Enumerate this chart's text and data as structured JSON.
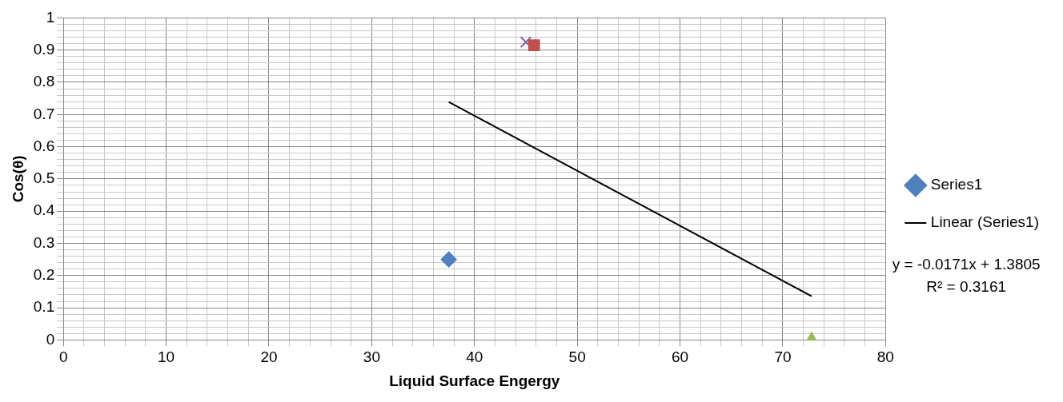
{
  "chart_data": {
    "type": "scatter",
    "xlabel": "Liquid Surface Engergy",
    "ylabel": "Cos(θ)",
    "xlim": [
      0,
      80
    ],
    "xticks": [
      0,
      10,
      20,
      30,
      40,
      50,
      60,
      70,
      80
    ],
    "ylim": [
      0,
      1
    ],
    "yticks": [
      0,
      0.1,
      0.2,
      0.3,
      0.4,
      0.5,
      0.6,
      0.7,
      0.8,
      0.9,
      1
    ],
    "grid": true,
    "legend": "right",
    "series": [
      {
        "name": "Series1",
        "x": [
          37.5,
          45,
          45.8,
          72.8
        ],
        "values": [
          0.25,
          0.925,
          0.915,
          0
        ],
        "colors": [
          "#4f81bd",
          "#8064a2",
          "#c0504d",
          "#9bbb59"
        ],
        "marker": [
          "diamond",
          "cross",
          "square",
          "triangle"
        ]
      },
      {
        "name": "Linear (Series1)",
        "type": "line",
        "color": "#000000",
        "x": [
          37.5,
          72.8
        ],
        "values": [
          0.739,
          0.136
        ],
        "marker": "none",
        "line_style": "solid"
      }
    ],
    "annotations": [
      "y = -0.0171x + 1.3805",
      "R² = 0.3161"
    ]
  }
}
